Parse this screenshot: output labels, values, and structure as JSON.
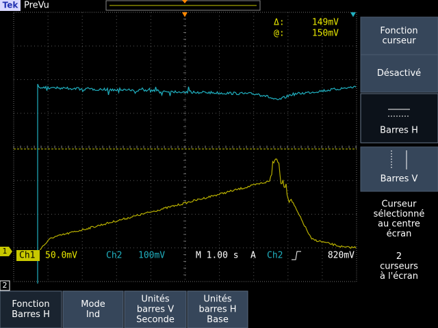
{
  "header": {
    "logo": "Tek",
    "mode": "PreVu"
  },
  "readout": {
    "delta_label": "Δ:",
    "delta": "149mV",
    "at_label": "@:",
    "at": "150mV"
  },
  "status": {
    "ch1": "Ch1",
    "ch1_scale": "50.0mV",
    "ch2": "Ch2",
    "ch2_scale": "100mV",
    "timebase": "M 1.00 s",
    "trigger": "A",
    "trigger_source": "Ch2",
    "trigger_level": "820mV"
  },
  "markers": {
    "ch1": "1",
    "ch2": "2"
  },
  "side_menu": [
    [
      "Fonction",
      "curseur"
    ],
    [
      "Désactivé"
    ],
    [
      "Barres H"
    ],
    [
      "Barres V"
    ],
    [
      "Curseur",
      "sélectionné",
      "au centre",
      "écran"
    ],
    [
      "2",
      "curseurs",
      "à  l'écran"
    ]
  ],
  "bottom_menu": [
    [
      "Fonction",
      "Barres H"
    ],
    [
      "Mode",
      "Ind"
    ],
    [
      "Unités",
      "barres V",
      "Seconde"
    ],
    [
      "Unités",
      "barres H",
      "Base"
    ]
  ]
}
